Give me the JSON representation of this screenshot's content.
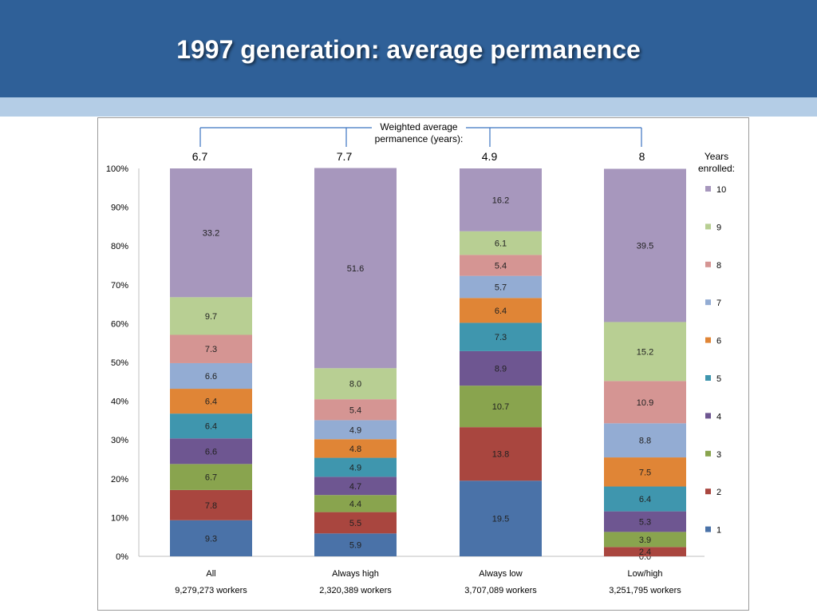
{
  "slide": {
    "title": "1997 generation: average permanence",
    "header_color": "#2f6098",
    "strip_color": "#b4cde6"
  },
  "chart_data": {
    "type": "bar",
    "stacked": true,
    "categories": [
      "All",
      "Always high",
      "Always low",
      "Low/high"
    ],
    "category_sublabels": [
      "9,279,273 workers",
      "2,320,389 workers",
      "3,707,089 workers",
      "3,251,795 workers"
    ],
    "ylim": [
      0,
      100
    ],
    "yticks": [
      "0%",
      "10%",
      "20%",
      "30%",
      "40%",
      "50%",
      "60%",
      "70%",
      "80%",
      "90%",
      "100%"
    ],
    "legend_title": "Years enrolled:",
    "legend_position": "right",
    "averages_label": "Weighted average permanence (years):",
    "averages": [
      "6.7",
      "7.7",
      "4.9",
      "8"
    ],
    "series": [
      {
        "name": "1",
        "color": "#4a72a8",
        "values": [
          9.3,
          5.9,
          19.5,
          0.0
        ]
      },
      {
        "name": "2",
        "color": "#a9463f",
        "values": [
          7.8,
          5.5,
          13.8,
          2.4
        ]
      },
      {
        "name": "3",
        "color": "#89a44e",
        "values": [
          6.7,
          4.4,
          10.7,
          3.9
        ]
      },
      {
        "name": "4",
        "color": "#6e5691",
        "values": [
          6.6,
          4.7,
          8.9,
          5.3
        ]
      },
      {
        "name": "5",
        "color": "#3f96ae",
        "values": [
          6.4,
          4.9,
          7.3,
          6.4
        ]
      },
      {
        "name": "6",
        "color": "#e08536",
        "values": [
          6.4,
          4.8,
          6.4,
          7.5
        ]
      },
      {
        "name": "7",
        "color": "#93acd3",
        "values": [
          6.6,
          4.9,
          5.7,
          8.8
        ]
      },
      {
        "name": "8",
        "color": "#d59593",
        "values": [
          7.3,
          5.4,
          5.4,
          10.9
        ]
      },
      {
        "name": "9",
        "color": "#b8cf93",
        "values": [
          9.7,
          8.0,
          6.1,
          15.2
        ]
      },
      {
        "name": "10",
        "color": "#a797bd",
        "values": [
          33.2,
          51.6,
          16.2,
          39.5
        ]
      }
    ],
    "grid": false,
    "bracket_color": "#3b73c0"
  }
}
